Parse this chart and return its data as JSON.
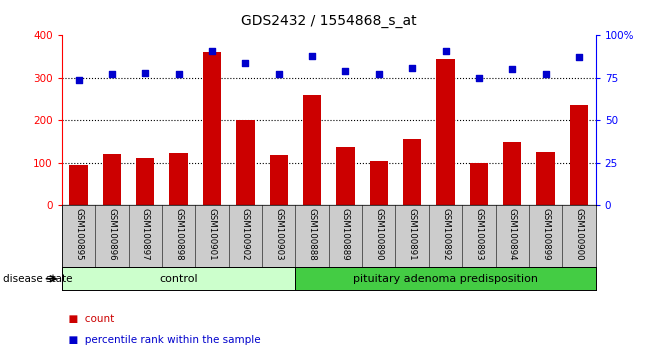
{
  "title": "GDS2432 / 1554868_s_at",
  "samples": [
    "GSM100895",
    "GSM100896",
    "GSM100897",
    "GSM100898",
    "GSM100901",
    "GSM100902",
    "GSM100903",
    "GSM100888",
    "GSM100889",
    "GSM100890",
    "GSM100891",
    "GSM100892",
    "GSM100893",
    "GSM100894",
    "GSM100899",
    "GSM100900"
  ],
  "bar_values": [
    95,
    120,
    112,
    122,
    362,
    200,
    118,
    260,
    138,
    105,
    155,
    345,
    100,
    148,
    126,
    235
  ],
  "percentile_values": [
    74,
    77,
    78,
    77,
    91,
    84,
    77,
    88,
    79,
    77,
    81,
    91,
    75,
    80,
    77,
    87
  ],
  "bar_color": "#cc0000",
  "dot_color": "#0000cc",
  "ylim_left": [
    0,
    400
  ],
  "ylim_right": [
    0,
    100
  ],
  "yticks_left": [
    0,
    100,
    200,
    300,
    400
  ],
  "yticks_right": [
    0,
    25,
    50,
    75,
    100
  ],
  "ytick_labels_right": [
    "0",
    "25",
    "50",
    "75",
    "100%"
  ],
  "grid_values": [
    100,
    200,
    300
  ],
  "control_count": 7,
  "control_label": "control",
  "disease_label": "pituitary adenoma predisposition",
  "disease_state_label": "disease state",
  "legend_count_label": "count",
  "legend_percentile_label": "percentile rank within the sample",
  "control_bg": "#ccffcc",
  "disease_bg": "#44cc44",
  "xticklabel_bg": "#cccccc",
  "plot_bg": "#ffffff",
  "title_fontsize": 10,
  "axis_fontsize": 7.5
}
